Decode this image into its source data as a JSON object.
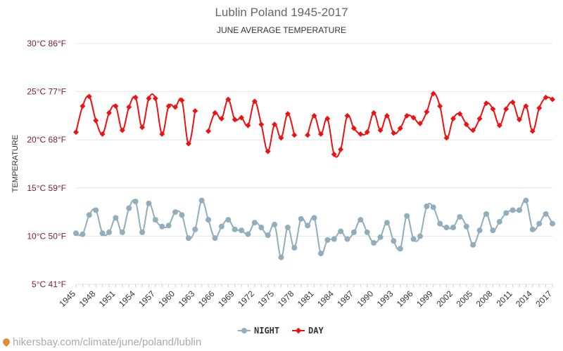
{
  "chart_data": {
    "type": "line",
    "title": "Lublin Poland 1945-2017",
    "subtitle": "JUNE AVERAGE TEMPERATURE",
    "ylabel": "TEMPERATURE",
    "ylim": [
      5,
      30
    ],
    "yticks": [
      {
        "value": 30,
        "label": "30°C 86°F"
      },
      {
        "value": 25,
        "label": "25°C 77°F"
      },
      {
        "value": 20,
        "label": "20°C 68°F"
      },
      {
        "value": 15,
        "label": "15°C 59°F"
      },
      {
        "value": 10,
        "label": "10°C 50°F"
      },
      {
        "value": 5,
        "label": "5°C 41°F"
      }
    ],
    "xtick_labels": [
      "1945",
      "1948",
      "1951",
      "1954",
      "1957",
      "1960",
      "1963",
      "1966",
      "1969",
      "1972",
      "1975",
      "1978",
      "1981",
      "1984",
      "1987",
      "1990",
      "1993",
      "1996",
      "1999",
      "2002",
      "2005",
      "2008",
      "2011",
      "2014",
      "2017"
    ],
    "grid": true,
    "legend_position": "bottom",
    "series": [
      {
        "name": "NIGHT",
        "color": "#90aebb",
        "marker": "circle",
        "x": [
          1945,
          1946,
          1947,
          1948,
          1949,
          1950,
          1951,
          1952,
          1953,
          1954,
          1955,
          1956,
          1957,
          1958,
          1959,
          1960,
          1961,
          1962,
          1963,
          1964,
          1965,
          1966,
          1967,
          1968,
          1969,
          1970,
          1971,
          1972,
          1973,
          1974,
          1975,
          1976,
          1977,
          1978,
          1979,
          1980,
          1981,
          1982,
          1983,
          1984,
          1985,
          1986,
          1987,
          1988,
          1989,
          1990,
          1991,
          1992,
          1993,
          1994,
          1995,
          1996,
          1997,
          1998,
          1999,
          2000,
          2001,
          2002,
          2003,
          2004,
          2005,
          2006,
          2007,
          2008,
          2009,
          2010,
          2011,
          2012,
          2013,
          2014,
          2015,
          2016,
          2017
        ],
        "values": [
          10.3,
          10.2,
          12.2,
          12.7,
          10.3,
          10.4,
          11.9,
          10.4,
          12.9,
          13.6,
          10.4,
          13.4,
          11.7,
          11.0,
          11.1,
          12.5,
          12.2,
          9.8,
          10.7,
          13.7,
          11.7,
          9.8,
          11.0,
          11.7,
          10.7,
          10.6,
          10.2,
          11.4,
          10.9,
          10.1,
          11.2,
          7.8,
          10.9,
          8.8,
          11.8,
          11.1,
          11.9,
          8.2,
          9.6,
          9.7,
          10.5,
          9.7,
          10.4,
          11.7,
          10.4,
          9.3,
          9.9,
          11.4,
          9.5,
          8.7,
          12.1,
          9.7,
          10.0,
          13.1,
          13.0,
          11.3,
          10.9,
          10.9,
          12.0,
          11.0,
          9.1,
          10.6,
          12.3,
          10.6,
          11.5,
          12.4,
          12.7,
          12.7,
          13.7,
          10.7,
          11.3,
          12.3,
          11.3
        ]
      },
      {
        "name": "DAY",
        "color": "#ee1111",
        "marker": "diamond",
        "x": [
          1945,
          1946,
          1947,
          1948,
          1949,
          1950,
          1951,
          1952,
          1953,
          1954,
          1955,
          1956,
          1957,
          1958,
          1959,
          1960,
          1961,
          1962,
          1963,
          1965,
          1966,
          1967,
          1968,
          1969,
          1970,
          1971,
          1972,
          1973,
          1974,
          1975,
          1976,
          1977,
          1978,
          1980,
          1981,
          1982,
          1983,
          1984,
          1985,
          1986,
          1987,
          1988,
          1989,
          1990,
          1991,
          1992,
          1993,
          1994,
          1995,
          1996,
          1997,
          1998,
          1999,
          2000,
          2001,
          2002,
          2003,
          2004,
          2005,
          2006,
          2007,
          2008,
          2009,
          2010,
          2011,
          2012,
          2013,
          2014,
          2015,
          2016,
          2017
        ],
        "values": [
          20.8,
          23.5,
          24.5,
          22.0,
          20.6,
          22.8,
          23.5,
          21.0,
          23.4,
          24.4,
          21.3,
          24.3,
          24.3,
          20.6,
          23.5,
          23.4,
          24.1,
          19.6,
          23.0,
          20.9,
          22.8,
          22.2,
          24.2,
          22.1,
          22.3,
          21.5,
          24.0,
          21.6,
          18.8,
          21.6,
          20.2,
          22.7,
          20.5,
          20.5,
          22.5,
          20.6,
          22.2,
          18.5,
          19.0,
          22.5,
          21.2,
          20.6,
          20.8,
          22.8,
          21.0,
          22.5,
          20.7,
          21.2,
          22.5,
          22.3,
          21.7,
          22.9,
          24.8,
          23.5,
          20.2,
          22.2,
          22.7,
          21.6,
          21.0,
          22.2,
          23.8,
          23.2,
          21.5,
          23.2,
          23.9,
          22.1,
          23.5,
          20.9,
          23.3,
          24.4,
          24.2
        ]
      }
    ]
  },
  "footer": {
    "watermark": "hikersbay.com/climate/june/poland/lublin"
  }
}
